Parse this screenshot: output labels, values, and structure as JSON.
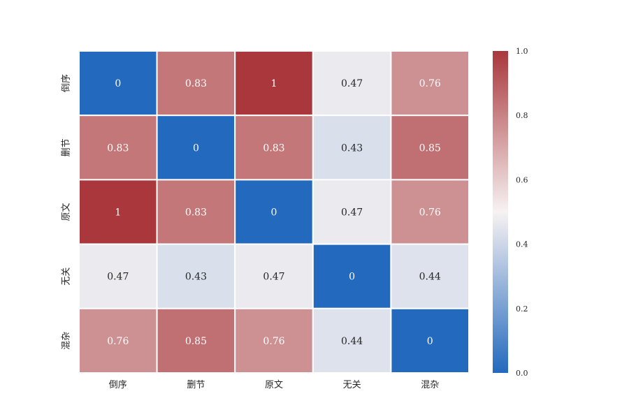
{
  "chart_data": {
    "type": "heatmap",
    "title": "",
    "xlabel": "",
    "ylabel": "",
    "x_categories": [
      "倒序",
      "删节",
      "原文",
      "无关",
      "混杂"
    ],
    "y_categories": [
      "倒序",
      "删节",
      "原文",
      "无关",
      "混杂"
    ],
    "values": [
      [
        0,
        0.83,
        1,
        0.47,
        0.76
      ],
      [
        0.83,
        0,
        0.83,
        0.43,
        0.85
      ],
      [
        1,
        0.83,
        0,
        0.47,
        0.76
      ],
      [
        0.47,
        0.43,
        0.47,
        0,
        0.44
      ],
      [
        0.76,
        0.85,
        0.76,
        0.44,
        0
      ]
    ],
    "value_labels": [
      [
        "0",
        "0.83",
        "1",
        "0.47",
        "0.76"
      ],
      [
        "0.83",
        "0",
        "0.83",
        "0.43",
        "0.85"
      ],
      [
        "1",
        "0.83",
        "0",
        "0.47",
        "0.76"
      ],
      [
        "0.47",
        "0.43",
        "0.47",
        "0",
        "0.44"
      ],
      [
        "0.76",
        "0.85",
        "0.76",
        "0.44",
        "0"
      ]
    ],
    "colormap": "vlag",
    "color_low": "#2369bd",
    "color_mid": "#f7f2f2",
    "color_high": "#a9373b",
    "vmin": 0,
    "vmax": 1,
    "colorbar": {
      "ticks": [
        0.0,
        0.2,
        0.4,
        0.6,
        0.8,
        1.0
      ],
      "tick_labels": [
        "0.0",
        "0.2",
        "0.4",
        "0.6",
        "0.8",
        "1.0"
      ]
    },
    "cell_border_color": "#ffffff",
    "grid": false,
    "legend": "right"
  }
}
